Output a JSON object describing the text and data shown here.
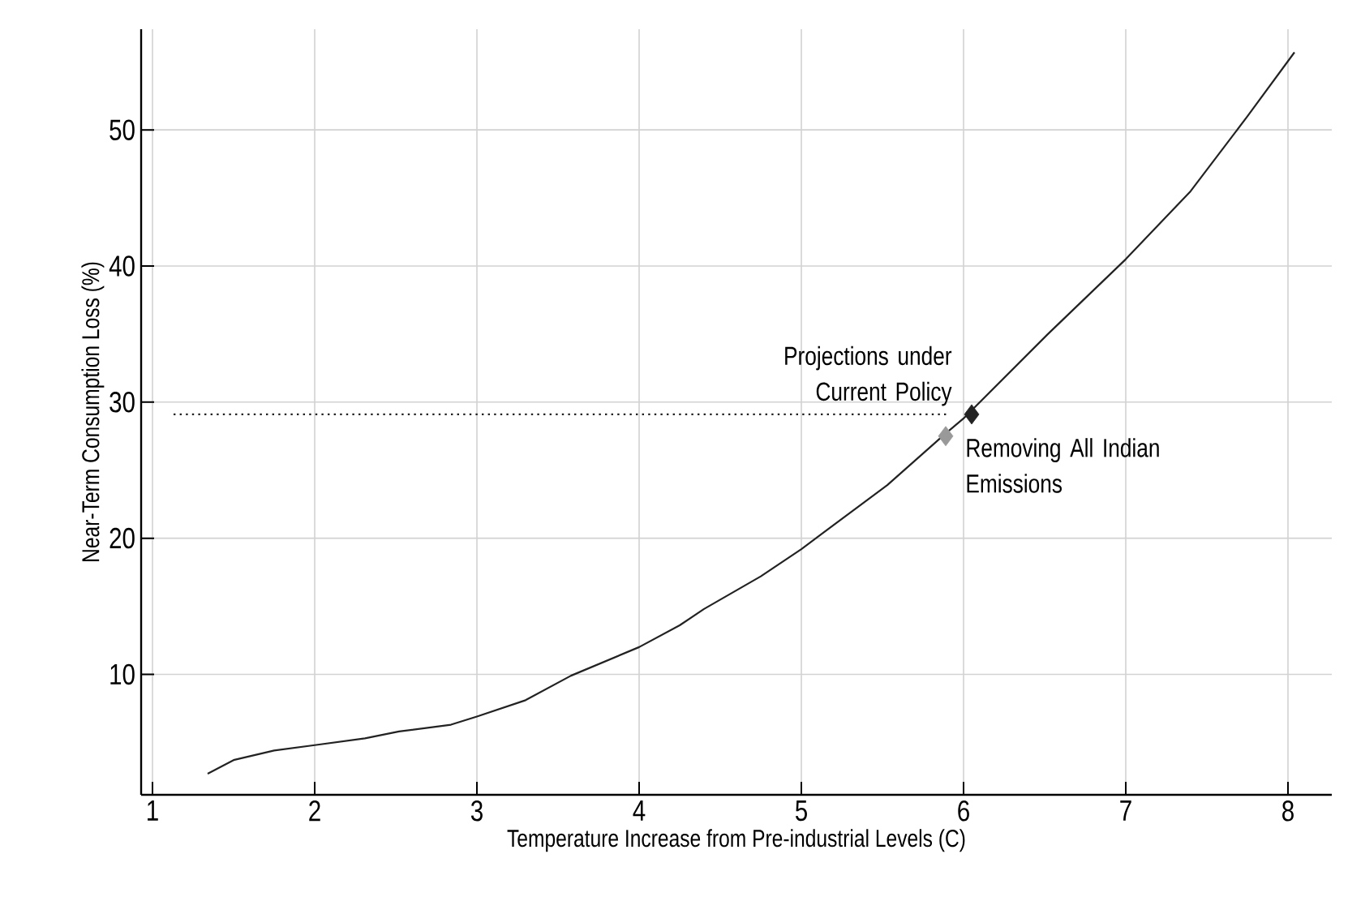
{
  "chart_data": {
    "type": "line",
    "xlabel": "Temperature Increase from Pre-industrial Levels (C)",
    "ylabel": "Near-Term Consumption Loss (%)",
    "xlim": [
      0.93,
      8.27
    ],
    "ylim": [
      1.15,
      57.4
    ],
    "xticks": [
      1,
      2,
      3,
      4,
      5,
      6,
      7,
      8
    ],
    "yticks": [
      10,
      20,
      30,
      40,
      50
    ],
    "grid": true,
    "series": [
      {
        "color": "#222222",
        "line_style": "solid",
        "x": [
          1.34,
          1.5,
          1.75,
          2.0,
          2.31,
          2.52,
          2.84,
          3.0,
          3.3,
          3.58,
          4.0,
          4.25,
          4.4,
          4.75,
          5.0,
          5.53,
          5.88,
          6.0,
          6.52,
          7.0,
          7.4,
          7.75,
          8.04
        ],
        "values": [
          2.7,
          3.7,
          4.4,
          4.8,
          5.3,
          5.8,
          6.3,
          6.9,
          8.1,
          9.9,
          12.0,
          13.6,
          14.8,
          17.2,
          19.2,
          23.9,
          27.6,
          28.8,
          35.0,
          40.5,
          45.5,
          51.0,
          55.7
        ]
      },
      {
        "type": "line",
        "color": "#222222",
        "line_style": "dotted",
        "x": [
          1.13,
          5.9
        ],
        "values": [
          29.1,
          29.1
        ]
      },
      {
        "type": "scatter",
        "color": "#999999",
        "marker": "diamond",
        "x": [
          5.89
        ],
        "values": [
          27.5
        ]
      },
      {
        "type": "scatter",
        "color": "#222222",
        "marker": "diamond",
        "x": [
          6.05
        ],
        "values": [
          29.1
        ]
      }
    ],
    "annotations": [
      {
        "text": "Projections under Current Policy",
        "x": 6.05,
        "y": 29.1
      },
      {
        "text": "Removing All Indian Emissions",
        "x": 5.89,
        "y": 27.5
      }
    ]
  }
}
